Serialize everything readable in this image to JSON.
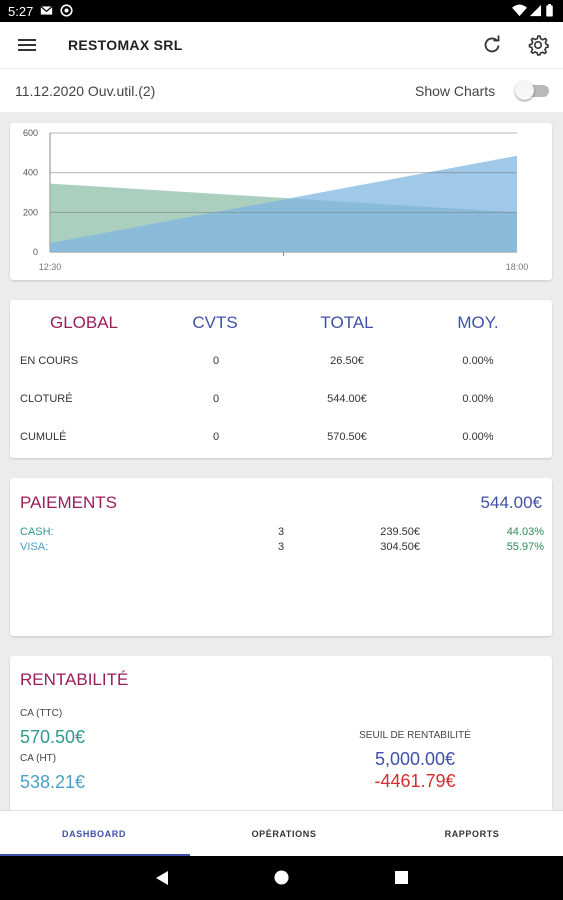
{
  "status_bar": {
    "time": "5:27",
    "icons": [
      "gmail-icon",
      "circle-app-icon",
      "wifi-icon",
      "signal-icon",
      "battery-icon"
    ]
  },
  "app_bar": {
    "title": "RESTOMAX SRL",
    "icons": [
      "menu-icon",
      "refresh-icon",
      "settings-icon"
    ]
  },
  "info_bar": {
    "date": "11.12.2020 Ouv.util.(2)",
    "show_charts_label": "Show Charts",
    "show_charts_on": false
  },
  "chart_data": {
    "type": "area",
    "x": [
      "12:30",
      "18:00"
    ],
    "xlim": [
      "12:30",
      "18:00"
    ],
    "ylim": [
      0,
      600
    ],
    "yticks": [
      "600",
      "400",
      "200",
      "0"
    ],
    "xticks": [
      "12:30",
      "18:00"
    ],
    "grid": true,
    "series": [
      {
        "color": "#8ebfa9",
        "values": [
          345,
          200
        ]
      },
      {
        "color": "#7fb6e2",
        "values": [
          45,
          485
        ]
      }
    ]
  },
  "global_table": {
    "headers": [
      "GLOBAL",
      "CVTS",
      "TOTAL",
      "MOY."
    ],
    "header_colors": [
      "#9a1d5a",
      "#3f51a8",
      "#3f51a8",
      "#3f51a8"
    ],
    "rows": [
      {
        "label": "EN COURS",
        "cvts": "0",
        "total": "26.50€",
        "moy": "0.00%"
      },
      {
        "label": "CLOTURÉ",
        "cvts": "0",
        "total": "544.00€",
        "moy": "0.00%"
      },
      {
        "label": "CUMULÉ",
        "cvts": "0",
        "total": "570.50€",
        "moy": "0.00%"
      }
    ]
  },
  "paiements": {
    "title": "PAIEMENTS",
    "total": "544.00€",
    "rows": [
      {
        "method": "CASH:",
        "count": "3",
        "amount": "239.50€",
        "percent": "44.03%"
      },
      {
        "method": "VISA:",
        "count": "3",
        "amount": "304.50€",
        "percent": "55.97%"
      }
    ]
  },
  "rentabilite": {
    "title": "RENTABILITÉ",
    "ca_ttc_label": "CA (TTC)",
    "ca_ttc_value": "570.50€",
    "ca_ht_label": "CA (HT)",
    "ca_ht_value": "538.21€",
    "seuil_label": "SEUIL DE RENTABILITÉ",
    "seuil_value": "5,000.00€",
    "diff_value": "-4461.79€"
  },
  "bottom_nav": {
    "tabs": [
      "DASHBOARD",
      "OPÉRATIONS",
      "RAPPORTS"
    ],
    "active": 0
  },
  "colors": {
    "accent_blue": "#3f51a8",
    "magenta": "#9a1d5a",
    "teal": "#2e9a8c",
    "light_blue": "#4aa0c8",
    "red": "#d32f2f",
    "green": "#2e8b57"
  }
}
